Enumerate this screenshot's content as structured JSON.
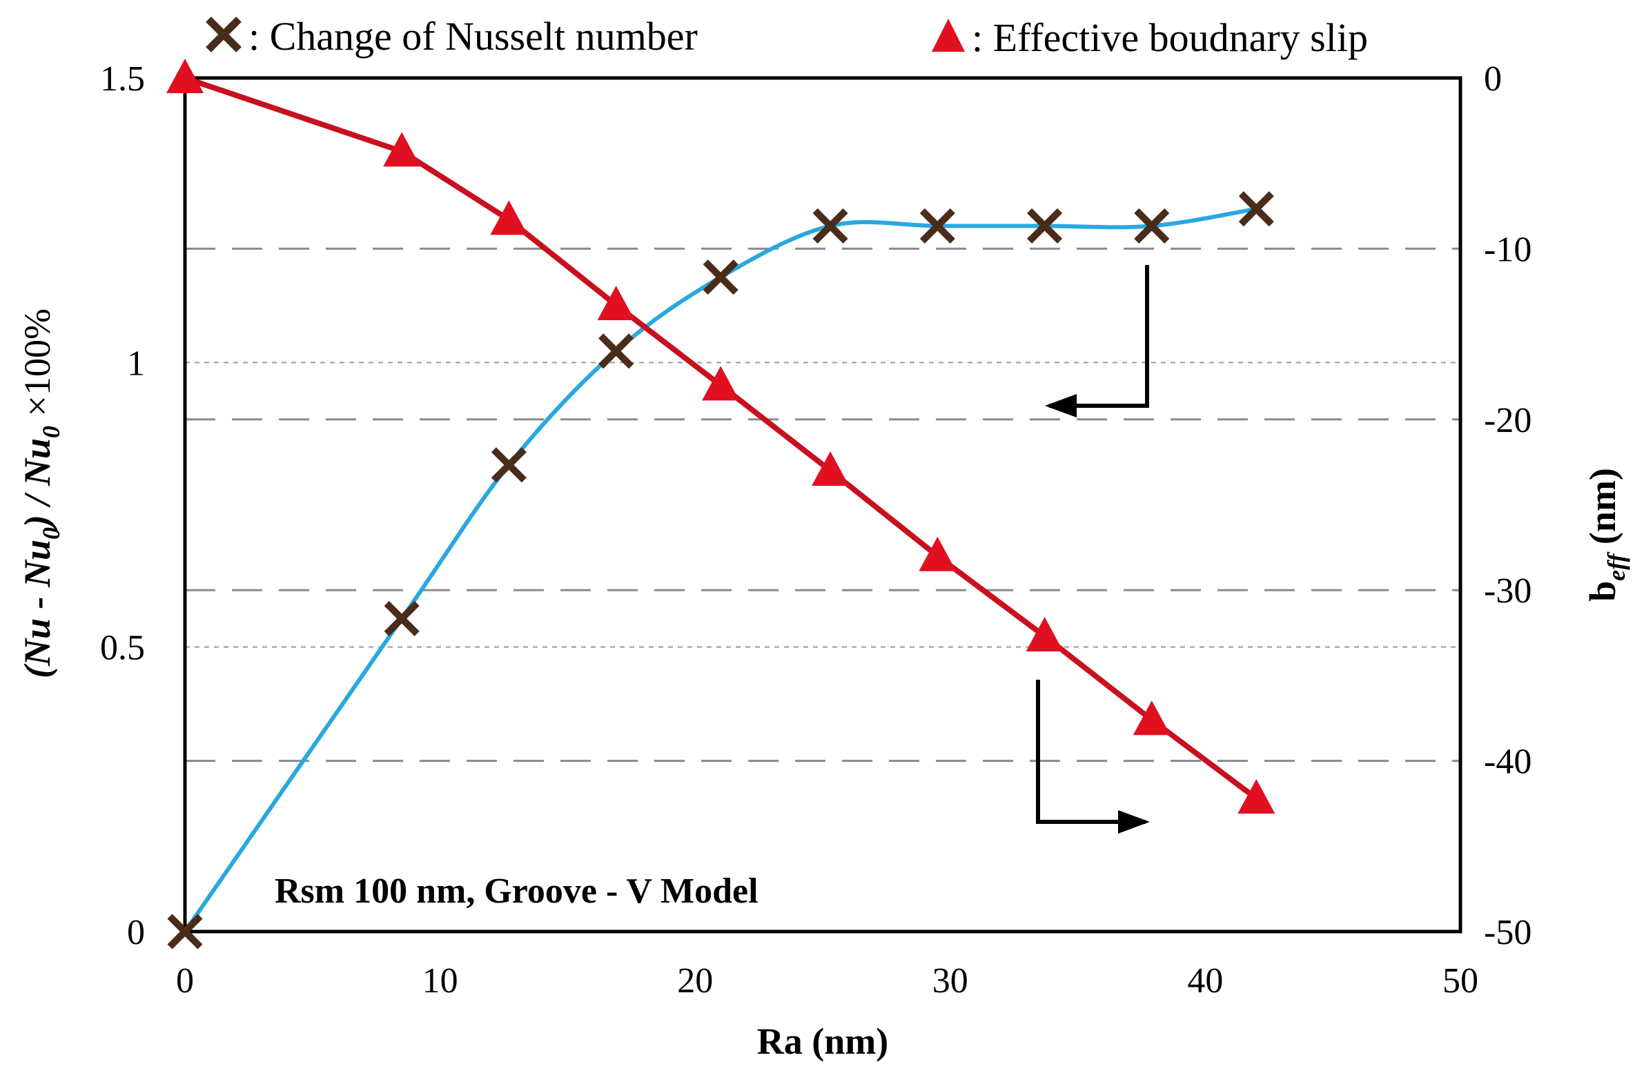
{
  "chart_data": {
    "type": "line",
    "title": "",
    "xlabel": "Ra (nm)",
    "ylabel_left": "(Nu - Nu0) / Nu0 ×100%",
    "ylabel_right": "beff (nm)",
    "annotation": "Rsm 100 nm, Groove - V Model",
    "xlim": [
      0,
      50
    ],
    "ylim_left": [
      0,
      1.5
    ],
    "ylim_right": [
      -50,
      0
    ],
    "x_ticks": [
      "0",
      "10",
      "20",
      "30",
      "40",
      "50"
    ],
    "y_left_ticks": [
      "0",
      "0.5",
      "1",
      "1.5"
    ],
    "y_right_ticks": [
      "0",
      "-10",
      "-20",
      "-30",
      "-40",
      "-50"
    ],
    "legend": [
      {
        "marker": "x",
        "label": ": Change of Nusselt number",
        "color": "#4a2c1a"
      },
      {
        "marker": "triangle",
        "label": ": Effective boudnary slip",
        "color": "#e01020"
      }
    ],
    "series": [
      {
        "name": "Change of Nusselt number",
        "axis": "left",
        "marker": "x",
        "line_color": "#29a8e0",
        "marker_color": "#4a2c1a",
        "x": [
          0,
          8.5,
          12.7,
          16.9,
          21,
          25.3,
          29.5,
          33.7,
          37.9,
          42
        ],
        "y": [
          0,
          0.55,
          0.82,
          1.02,
          1.15,
          1.24,
          1.24,
          1.24,
          1.24,
          1.27
        ]
      },
      {
        "name": "Effective boudnary slip",
        "axis": "right",
        "marker": "triangle",
        "line_color": "#c8101e",
        "marker_color": "#e01020",
        "x": [
          0,
          8.5,
          12.7,
          16.9,
          21,
          25.3,
          29.5,
          33.7,
          37.9,
          42
        ],
        "y": [
          0,
          -4.3,
          -8.3,
          -13.3,
          -18,
          -23,
          -28,
          -32.7,
          -37.6,
          -42.2
        ]
      }
    ]
  }
}
